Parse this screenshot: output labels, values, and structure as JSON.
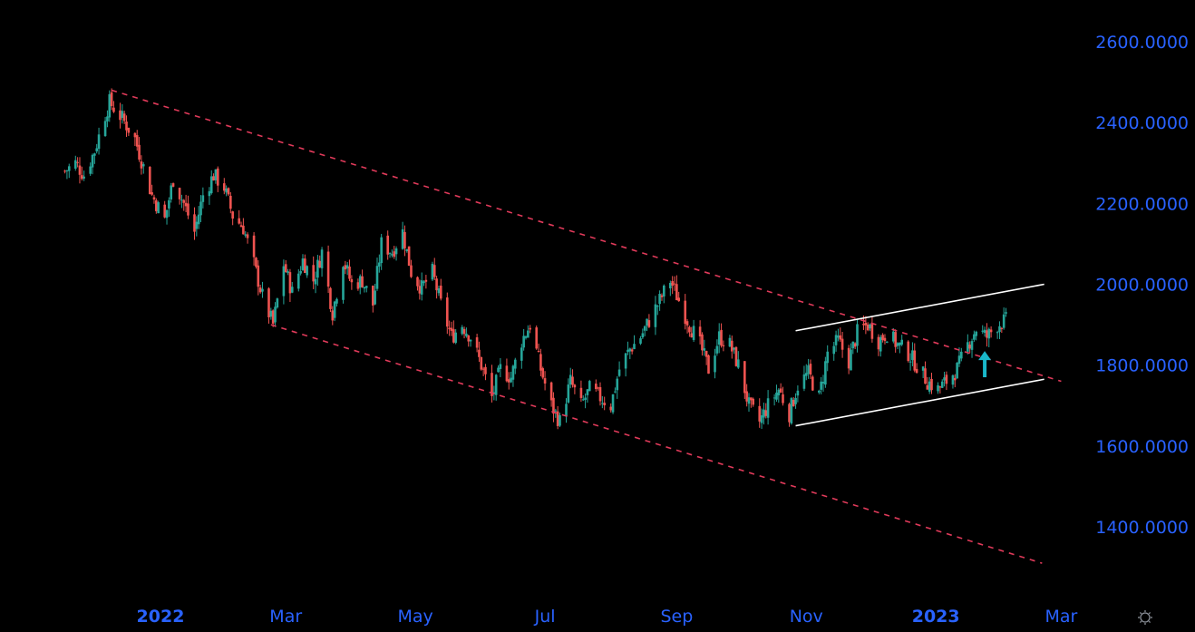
{
  "chart_data": {
    "type": "candlestick",
    "y_scale": "linear",
    "ylim": [
      1250,
      2680
    ],
    "y_ticks": [
      "2600.0000",
      "2400.0000",
      "2200.0000",
      "2000.0000",
      "1800.0000",
      "1600.0000",
      "1400.0000"
    ],
    "y_tick_values": [
      2600,
      2400,
      2200,
      2000,
      1800,
      1600,
      1400
    ],
    "x_ticks": [
      {
        "label": "2022",
        "date": "2022-01-01",
        "bold": true
      },
      {
        "label": "Mar",
        "date": "2022-03-01",
        "bold": false
      },
      {
        "label": "May",
        "date": "2022-05-01",
        "bold": false
      },
      {
        "label": "Jul",
        "date": "2022-07-01",
        "bold": false
      },
      {
        "label": "Sep",
        "date": "2022-09-01",
        "bold": false
      },
      {
        "label": "Nov",
        "date": "2022-11-01",
        "bold": false
      },
      {
        "label": "2023",
        "date": "2023-01-01",
        "bold": true
      },
      {
        "label": "Mar",
        "date": "2023-03-01",
        "bold": false
      }
    ],
    "close_path": [
      [
        "2021-11-17",
        2280
      ],
      [
        "2021-11-22",
        2300
      ],
      [
        "2021-11-26",
        2270
      ],
      [
        "2021-12-01",
        2330
      ],
      [
        "2021-12-06",
        2420
      ],
      [
        "2021-12-08",
        2450
      ],
      [
        "2021-12-14",
        2410
      ],
      [
        "2021-12-20",
        2360
      ],
      [
        "2021-12-24",
        2290
      ],
      [
        "2021-12-28",
        2220
      ],
      [
        "2022-01-03",
        2160
      ],
      [
        "2022-01-07",
        2260
      ],
      [
        "2022-01-12",
        2200
      ],
      [
        "2022-01-17",
        2130
      ],
      [
        "2022-01-21",
        2220
      ],
      [
        "2022-01-26",
        2270
      ],
      [
        "2022-01-31",
        2240
      ],
      [
        "2022-02-04",
        2170
      ],
      [
        "2022-02-09",
        2140
      ],
      [
        "2022-02-14",
        2050
      ],
      [
        "2022-02-18",
        1970
      ],
      [
        "2022-02-23",
        1900
      ],
      [
        "2022-02-28",
        2050
      ],
      [
        "2022-03-04",
        1980
      ],
      [
        "2022-03-09",
        2060
      ],
      [
        "2022-03-14",
        2010
      ],
      [
        "2022-03-18",
        2080
      ],
      [
        "2022-03-23",
        1930
      ],
      [
        "2022-03-28",
        2060
      ],
      [
        "2022-04-01",
        2000
      ],
      [
        "2022-04-06",
        2010
      ],
      [
        "2022-04-11",
        1950
      ],
      [
        "2022-04-15",
        2100
      ],
      [
        "2022-04-20",
        2080
      ],
      [
        "2022-04-25",
        2130
      ],
      [
        "2022-04-29",
        2030
      ],
      [
        "2022-05-04",
        1990
      ],
      [
        "2022-05-09",
        2030
      ],
      [
        "2022-05-13",
        1950
      ],
      [
        "2022-05-18",
        1870
      ],
      [
        "2022-05-23",
        1900
      ],
      [
        "2022-05-27",
        1870
      ],
      [
        "2022-06-01",
        1800
      ],
      [
        "2022-06-06",
        1720
      ],
      [
        "2022-06-10",
        1790
      ],
      [
        "2022-06-15",
        1770
      ],
      [
        "2022-06-20",
        1860
      ],
      [
        "2022-06-24",
        1900
      ],
      [
        "2022-06-29",
        1790
      ],
      [
        "2022-07-04",
        1700
      ],
      [
        "2022-07-08",
        1660
      ],
      [
        "2022-07-13",
        1760
      ],
      [
        "2022-07-18",
        1700
      ],
      [
        "2022-07-22",
        1740
      ],
      [
        "2022-07-27",
        1720
      ],
      [
        "2022-08-01",
        1700
      ],
      [
        "2022-08-05",
        1790
      ],
      [
        "2022-08-10",
        1840
      ],
      [
        "2022-08-15",
        1870
      ],
      [
        "2022-08-19",
        1910
      ],
      [
        "2022-08-24",
        1960
      ],
      [
        "2022-08-29",
        2010
      ],
      [
        "2022-09-02",
        1960
      ],
      [
        "2022-09-07",
        1900
      ],
      [
        "2022-09-12",
        1850
      ],
      [
        "2022-09-16",
        1790
      ],
      [
        "2022-09-21",
        1870
      ],
      [
        "2022-09-26",
        1850
      ],
      [
        "2022-09-30",
        1800
      ],
      [
        "2022-10-05",
        1700
      ],
      [
        "2022-10-10",
        1660
      ],
      [
        "2022-10-14",
        1700
      ],
      [
        "2022-10-19",
        1740
      ],
      [
        "2022-10-24",
        1680
      ],
      [
        "2022-10-28",
        1750
      ],
      [
        "2022-11-02",
        1780
      ],
      [
        "2022-11-07",
        1720
      ],
      [
        "2022-11-11",
        1830
      ],
      [
        "2022-11-16",
        1860
      ],
      [
        "2022-11-21",
        1810
      ],
      [
        "2022-11-25",
        1880
      ],
      [
        "2022-11-30",
        1900
      ],
      [
        "2022-12-05",
        1860
      ],
      [
        "2022-12-09",
        1880
      ],
      [
        "2022-12-14",
        1850
      ],
      [
        "2022-12-19",
        1830
      ],
      [
        "2022-12-23",
        1800
      ],
      [
        "2022-12-28",
        1760
      ],
      [
        "2023-01-02",
        1740
      ],
      [
        "2023-01-06",
        1760
      ],
      [
        "2023-01-11",
        1790
      ],
      [
        "2023-01-16",
        1850
      ],
      [
        "2023-01-20",
        1890
      ],
      [
        "2023-01-25",
        1870
      ],
      [
        "2023-01-30",
        1900
      ],
      [
        "2023-02-03",
        1910
      ]
    ],
    "trendlines": [
      {
        "name": "descending-channel-upper",
        "style": "dashed",
        "color": "#e03a5a",
        "from": [
          "2021-12-09",
          2480
        ],
        "to": [
          "2023-03-01",
          1760
        ]
      },
      {
        "name": "descending-channel-lower",
        "style": "dashed",
        "color": "#e03a5a",
        "from": [
          "2022-02-22",
          1900
        ],
        "to": [
          "2023-02-20",
          1310
        ]
      },
      {
        "name": "ascending-channel-upper",
        "style": "solid",
        "color": "#ffffff",
        "from": [
          "2022-10-27",
          1885
        ],
        "to": [
          "2023-02-21",
          2000
        ]
      },
      {
        "name": "ascending-channel-lower",
        "style": "solid",
        "color": "#ffffff",
        "from": [
          "2022-10-27",
          1650
        ],
        "to": [
          "2023-02-21",
          1765
        ]
      }
    ],
    "annotations": [
      {
        "type": "arrow-up",
        "color": "#19b7c9",
        "date": "2023-01-24",
        "from_value": 1770,
        "to_value": 1835
      }
    ],
    "colors": {
      "background": "#000000",
      "up": "#26a69a",
      "down": "#ef5350",
      "axis_text": "#2962ff"
    }
  },
  "icons": {
    "settings": "gear-icon"
  }
}
